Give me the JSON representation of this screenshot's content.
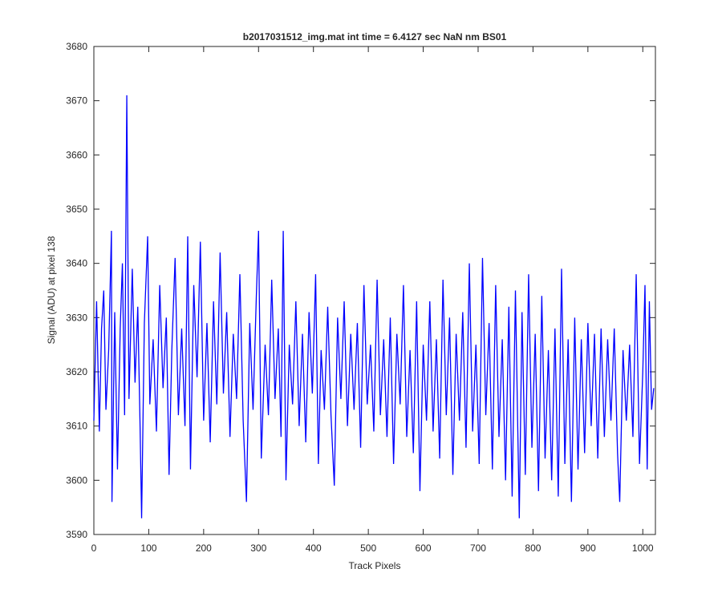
{
  "chart_data": {
    "type": "line",
    "title": "b2017031512_img.mat int time = 6.4127 sec  NaN nm BS01",
    "x_label": "Track Pixels",
    "y_label": "Signal (ADU) at pixel 138",
    "xlim": [
      0,
      1023
    ],
    "ylim": [
      3590,
      3680
    ],
    "xticks": [
      0,
      100,
      200,
      300,
      400,
      500,
      600,
      700,
      800,
      900,
      1000
    ],
    "yticks": [
      3590,
      3600,
      3610,
      3620,
      3630,
      3640,
      3650,
      3660,
      3670,
      3680
    ],
    "series": [
      {
        "name": "Signal",
        "color": "#0000ff",
        "x": [
          0,
          5,
          10,
          14,
          18,
          22,
          27,
          32,
          33,
          38,
          43,
          48,
          52,
          56,
          60,
          64,
          70,
          75,
          80,
          84,
          87,
          92,
          98,
          102,
          108,
          114,
          120,
          126,
          132,
          137,
          142,
          148,
          154,
          160,
          166,
          171,
          176,
          182,
          188,
          194,
          200,
          206,
          212,
          218,
          224,
          230,
          236,
          242,
          248,
          254,
          260,
          266,
          272,
          278,
          284,
          290,
          296,
          300,
          305,
          312,
          318,
          324,
          330,
          336,
          341,
          345,
          350,
          356,
          362,
          368,
          374,
          380,
          386,
          392,
          398,
          404,
          409,
          414,
          420,
          426,
          432,
          438,
          444,
          450,
          456,
          462,
          468,
          474,
          480,
          486,
          492,
          498,
          504,
          510,
          516,
          522,
          528,
          534,
          540,
          546,
          552,
          558,
          564,
          570,
          576,
          582,
          588,
          594,
          600,
          606,
          612,
          618,
          624,
          630,
          636,
          642,
          648,
          654,
          660,
          666,
          672,
          678,
          684,
          690,
          696,
          702,
          708,
          714,
          720,
          726,
          732,
          738,
          744,
          750,
          756,
          762,
          768,
          775,
          780,
          786,
          792,
          798,
          804,
          810,
          816,
          822,
          828,
          834,
          840,
          846,
          852,
          858,
          864,
          870,
          876,
          882,
          888,
          894,
          900,
          906,
          912,
          918,
          924,
          930,
          936,
          942,
          948,
          954,
          958,
          964,
          970,
          976,
          982,
          988,
          994,
          1000,
          1004,
          1008,
          1012,
          1016,
          1020
        ],
        "values": [
          3611,
          3633,
          3609,
          3628,
          3635,
          3613,
          3624,
          3646,
          3596,
          3631,
          3602,
          3628,
          3640,
          3612,
          3671,
          3615,
          3639,
          3618,
          3632,
          3611,
          3593,
          3629,
          3645,
          3614,
          3626,
          3609,
          3636,
          3617,
          3630,
          3601,
          3624,
          3641,
          3612,
          3628,
          3610,
          3645,
          3602,
          3636,
          3619,
          3644,
          3611,
          3629,
          3607,
          3633,
          3614,
          3642,
          3616,
          3631,
          3608,
          3627,
          3615,
          3638,
          3611,
          3596,
          3629,
          3613,
          3634,
          3646,
          3604,
          3625,
          3612,
          3637,
          3615,
          3628,
          3608,
          3646,
          3600,
          3625,
          3614,
          3633,
          3610,
          3627,
          3607,
          3631,
          3616,
          3638,
          3603,
          3624,
          3613,
          3632,
          3612,
          3599,
          3630,
          3615,
          3633,
          3610,
          3627,
          3613,
          3629,
          3606,
          3636,
          3614,
          3625,
          3609,
          3637,
          3612,
          3626,
          3608,
          3630,
          3603,
          3627,
          3614,
          3636,
          3608,
          3624,
          3605,
          3633,
          3598,
          3625,
          3611,
          3633,
          3609,
          3626,
          3604,
          3637,
          3612,
          3630,
          3601,
          3627,
          3611,
          3631,
          3606,
          3640,
          3609,
          3625,
          3603,
          3641,
          3612,
          3629,
          3602,
          3636,
          3608,
          3626,
          3600,
          3632,
          3597,
          3635,
          3593,
          3631,
          3601,
          3638,
          3606,
          3627,
          3598,
          3634,
          3604,
          3624,
          3600,
          3628,
          3597,
          3639,
          3603,
          3626,
          3596,
          3630,
          3602,
          3626,
          3605,
          3629,
          3610,
          3627,
          3604,
          3628,
          3608,
          3626,
          3611,
          3628,
          3605,
          3596,
          3624,
          3611,
          3625,
          3608,
          3638,
          3603,
          3620,
          3636,
          3602,
          3633,
          3613,
          3617
        ]
      }
    ]
  }
}
